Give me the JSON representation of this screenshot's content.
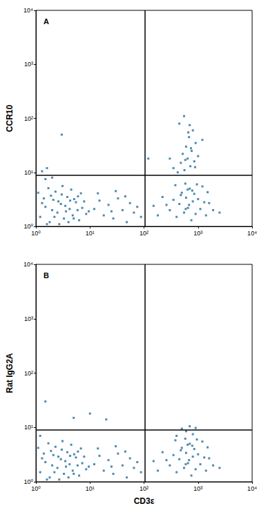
{
  "chart_data": [
    {
      "type": "scatter",
      "title": "A",
      "y_label": "CCR10",
      "log": true,
      "marker": "square",
      "color": "#1f6b9c",
      "xlim": [
        1,
        10000
      ],
      "ylim": [
        1,
        10000
      ],
      "xticks": [
        {
          "value": 1,
          "label": "10⁰"
        },
        {
          "value": 10,
          "label": "10¹"
        },
        {
          "value": 100,
          "label": "10²"
        },
        {
          "value": 1000,
          "label": "10³"
        },
        {
          "value": 10000,
          "label": "10⁴"
        }
      ],
      "yticks": [
        {
          "value": 1,
          "label": "10⁰"
        },
        {
          "value": 10,
          "label": "10¹"
        },
        {
          "value": 100,
          "label": "10²"
        },
        {
          "value": 1000,
          "label": "10³"
        },
        {
          "value": 10000,
          "label": "10⁴"
        }
      ],
      "gates": {
        "x": 105,
        "y": 9
      },
      "x": [
        1.2,
        1.5,
        1.8,
        2.1,
        2.5,
        2.9,
        3.3,
        3.8,
        4.2,
        4.8,
        5.5,
        6.3,
        7.2,
        8.5,
        1.1,
        1.4,
        1.7,
        2.0,
        2.3,
        2.7,
        3.0,
        3.5,
        4.0,
        4.5,
        5.1,
        5.9,
        6.8,
        1.3,
        1.6,
        1.9,
        2.2,
        2.6,
        3.1,
        3.6,
        4.3,
        5.0,
        6.0,
        7.8,
        9.5,
        1.5,
        2.0,
        1.3,
        1.6,
        3.0,
        12,
        15,
        18,
        22,
        27,
        33,
        40,
        48,
        55,
        65,
        75,
        88,
        14,
        25,
        30,
        45,
        150,
        180,
        220,
        300,
        350,
        400,
        450,
        500,
        550,
        600,
        650,
        700,
        750,
        800,
        850,
        900,
        1000,
        1100,
        1200,
        1400,
        1600,
        1900,
        380,
        480,
        580,
        680,
        780,
        950,
        1300,
        1500,
        260,
        2500,
        640,
        590,
        350,
        420,
        480,
        520,
        560,
        600,
        640,
        680,
        720,
        760,
        800,
        850,
        900,
        1000,
        1200,
        450,
        550,
        700,
        880,
        660,
        580,
        740,
        300,
        120
      ],
      "values": [
        1.5,
        2.3,
        1.2,
        3.1,
        1.8,
        2.6,
        1.4,
        3.5,
        2.1,
        1.6,
        2.8,
        1.3,
        2.2,
        1.7,
        4.2,
        3.3,
        5.1,
        2.0,
        4.4,
        1.1,
        3.9,
        2.4,
        1.2,
        4.8,
        3.2,
        2.0,
        4.1,
        2.7,
        1.1,
        3.7,
        1.5,
        2.9,
        5.6,
        1.9,
        3.0,
        1.4,
        3.6,
        2.9,
        1.9,
        7.5,
        8.0,
        10.5,
        12,
        50,
        2.1,
        3.0,
        1.6,
        2.5,
        1.4,
        3.3,
        2.0,
        1.2,
        2.7,
        1.8,
        2.3,
        1.5,
        4.1,
        1.9,
        4.5,
        3.6,
        2.4,
        1.6,
        3.5,
        2.0,
        3.1,
        1.5,
        2.6,
        4.2,
        1.8,
        3.4,
        2.2,
        5.0,
        1.3,
        2.9,
        4.0,
        1.7,
        3.2,
        2.1,
        5.5,
        1.6,
        2.7,
        2.0,
        5.8,
        3.8,
        6.2,
        2.5,
        4.6,
        6.0,
        2.8,
        4.3,
        2.5,
        1.8,
        4.8,
        2.1,
        12,
        10,
        15,
        22,
        11,
        30,
        18,
        45,
        13,
        25,
        60,
        16,
        35,
        20,
        40,
        80,
        110,
        75,
        12.5,
        55,
        17,
        28,
        18,
        18
      ]
    },
    {
      "type": "scatter",
      "title": "B",
      "y_label": "Rat IgG2A",
      "x_label": "CD3ε",
      "log": true,
      "marker": "square",
      "color": "#1f6b9c",
      "xlim": [
        1,
        10000
      ],
      "ylim": [
        1,
        10000
      ],
      "xticks": [
        {
          "value": 1,
          "label": "10⁰"
        },
        {
          "value": 10,
          "label": "10¹"
        },
        {
          "value": 100,
          "label": "10²"
        },
        {
          "value": 1000,
          "label": "10³"
        },
        {
          "value": 10000,
          "label": "10⁴"
        }
      ],
      "yticks": [
        {
          "value": 1,
          "label": "10⁰"
        },
        {
          "value": 10,
          "label": "10¹"
        },
        {
          "value": 100,
          "label": "10²"
        },
        {
          "value": 1000,
          "label": "10³"
        },
        {
          "value": 10000,
          "label": "10⁴"
        }
      ],
      "gates": {
        "x": 105,
        "y": 9
      },
      "x": [
        1.2,
        1.5,
        1.8,
        2.1,
        2.5,
        2.9,
        3.3,
        3.8,
        4.2,
        4.8,
        5.5,
        6.3,
        7.2,
        8.5,
        1.1,
        1.4,
        1.7,
        2.0,
        2.3,
        2.7,
        3.0,
        3.5,
        4.0,
        4.5,
        5.1,
        5.9,
        6.8,
        1.3,
        1.6,
        1.9,
        2.2,
        2.6,
        3.1,
        3.6,
        4.3,
        5.0,
        6.0,
        7.8,
        9.5,
        1.5,
        5,
        10,
        20,
        1.2,
        12,
        15,
        18,
        22,
        27,
        33,
        40,
        48,
        55,
        65,
        75,
        88,
        14,
        25,
        30,
        45,
        150,
        180,
        220,
        300,
        350,
        400,
        450,
        500,
        550,
        600,
        650,
        700,
        750,
        800,
        850,
        900,
        1000,
        1100,
        1200,
        1400,
        1600,
        1900,
        380,
        480,
        580,
        680,
        780,
        950,
        1300,
        1500,
        260,
        2500,
        640,
        590,
        500,
        700,
        900,
        600,
        800,
        400
      ],
      "values": [
        1.5,
        2.3,
        1.2,
        3.1,
        1.8,
        2.6,
        1.4,
        3.5,
        2.1,
        1.6,
        2.8,
        1.3,
        2.2,
        1.7,
        4.2,
        3.3,
        5.1,
        2.0,
        4.4,
        1.1,
        3.9,
        2.4,
        1.2,
        4.8,
        3.2,
        2.0,
        4.1,
        2.7,
        1.1,
        3.7,
        1.5,
        2.9,
        5.6,
        1.9,
        3.0,
        1.4,
        3.6,
        2.9,
        1.9,
        30,
        15,
        18,
        14,
        7,
        2.1,
        3.0,
        1.6,
        2.5,
        1.4,
        3.3,
        2.0,
        1.2,
        2.7,
        1.8,
        2.3,
        1.5,
        4.1,
        1.9,
        4.5,
        3.6,
        2.4,
        1.6,
        3.5,
        2.0,
        3.1,
        1.5,
        2.6,
        4.2,
        1.8,
        3.4,
        2.2,
        5.0,
        1.3,
        2.9,
        4.0,
        1.7,
        3.2,
        2.1,
        5.5,
        1.6,
        2.7,
        2.0,
        5.8,
        3.8,
        6.2,
        2.5,
        4.6,
        6.0,
        2.8,
        4.3,
        2.5,
        1.8,
        4.8,
        2.1,
        9.5,
        10.5,
        9.8,
        8.5,
        7.5,
        7.0
      ]
    }
  ]
}
